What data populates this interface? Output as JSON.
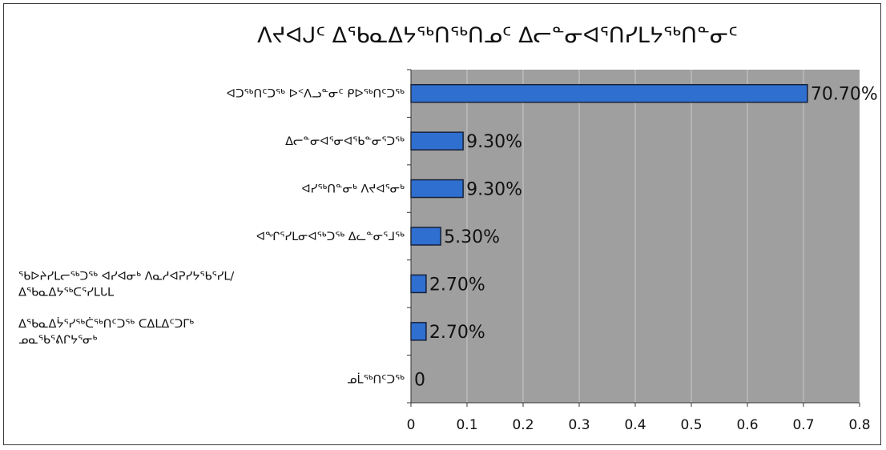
{
  "chart_data": {
    "type": "bar",
    "orientation": "horizontal",
    "title": "ᐱᔪᐊᒍᑦ ᐃᖃᓇᐃᔭᖅᑎᖅᑎᓄᑦ ᐃᓕᓐᓂᐊᕐᑎᓯᒪᔭᖅᑎᓐᓂᑦ",
    "categories": [
      "ᐊᑐᖅᑎᑦᑐᖅ ᐅᑉᐱᓗᓐᓂᑦ ᑭᐅᖅᑎᑦᑐᖅ",
      "ᐃᓕᓐᓂᐊᕐᓂᐊᖃᓐᓂᕐᑐᖅ",
      "ᐊᓯᖅᑎᓐᓂᒃ ᐱᔪᐊᕐᓂᒃ",
      "ᐊᖏᕐᓯᒪᓂᐊᖅᑐᖅ ᐃᓚᓐᓂᕐᒧᖅ",
      "ᖃᐅᔨᓯᒪᓕᖅᑐᖅ ᐊᓯᐊᓂᒃ ᐱᓇᓱᐊᕈᓯᔭᖃᕐᓯᒪ/ ᐃᖃᓇᐃᔭᖅᑕᕐᓯᒪᒐᒪ",
      "ᐃᖃᓇᐃᔮᕐᓯᖅᑖᖅᑎᑦᑐᖅ ᑕᐃᒪᐃᑦᑐᒥᒃ ᓄᓇᖃᕐᕕᒋᔭᕐᓂᒃ",
      "ᓄᒫᖅᑎᑦᑐᖅ"
    ],
    "values": [
      0.707,
      0.093,
      0.093,
      0.053,
      0.027,
      0.027,
      0
    ],
    "data_labels": [
      "70.70%",
      "9.30%",
      "9.30%",
      "5.30%",
      "2.70%",
      "2.70%",
      "0"
    ],
    "xlim": [
      0,
      0.8
    ],
    "xticks": [
      "0",
      "0.1",
      "0.2",
      "0.3",
      "0.4",
      "0.5",
      "0.6",
      "0.7",
      "0.8"
    ],
    "xlabel": "",
    "ylabel": "",
    "grid": true,
    "legend": "none",
    "colors": {
      "bar": "#2f6fd0",
      "bar_border": "#15213a",
      "plot_bg": "#9f9f9f",
      "grid": "#c8c8c8",
      "text": "#111111"
    }
  }
}
